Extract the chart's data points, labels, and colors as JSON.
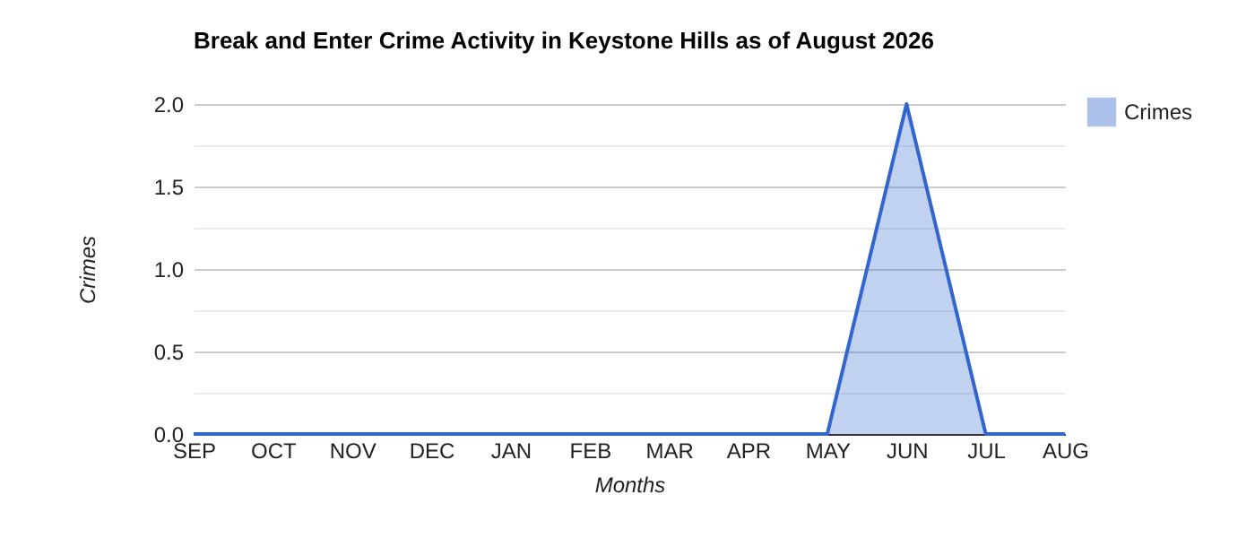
{
  "chart_data": {
    "type": "area",
    "title": "Break and Enter Crime Activity in Keystone Hills as of August 2026",
    "xlabel": "Months",
    "ylabel": "Crimes",
    "categories": [
      "SEP",
      "OCT",
      "NOV",
      "DEC",
      "JAN",
      "FEB",
      "MAR",
      "APR",
      "MAY",
      "JUN",
      "JUL",
      "AUG"
    ],
    "series": [
      {
        "name": "Crimes",
        "color": "#3366cc",
        "values": [
          0,
          0,
          0,
          0,
          0,
          0,
          0,
          0,
          0,
          2,
          0,
          0
        ]
      }
    ],
    "ylim": [
      0,
      2
    ],
    "yticks": [
      {
        "value": 0,
        "label": "0.0"
      },
      {
        "value": 0.25,
        "label": null
      },
      {
        "value": 0.5,
        "label": "0.5"
      },
      {
        "value": 0.75,
        "label": null
      },
      {
        "value": 1,
        "label": "1.0"
      },
      {
        "value": 1.25,
        "label": null
      },
      {
        "value": 1.5,
        "label": "1.5"
      },
      {
        "value": 1.75,
        "label": null
      },
      {
        "value": 2,
        "label": "2.0"
      }
    ],
    "grid": true,
    "legend": "top right"
  }
}
